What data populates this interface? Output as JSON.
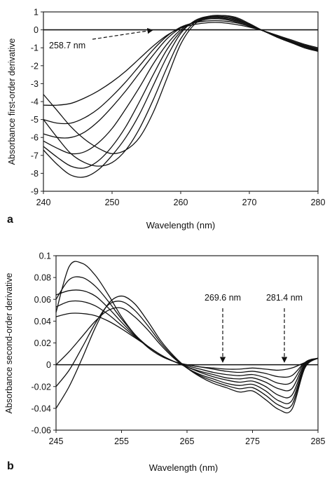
{
  "chart_data": [
    {
      "panel_label": "a",
      "type": "line",
      "xlabel": "Wavelength (nm)",
      "ylabel": "Absorbance first-order derivative",
      "xlim": [
        240,
        280
      ],
      "ylim": [
        -9,
        1
      ],
      "xticks": [
        240,
        250,
        260,
        270,
        280
      ],
      "yticks": [
        1,
        0,
        -1,
        -2,
        -3,
        -4,
        -5,
        -6,
        -7,
        -8,
        -9
      ],
      "x_tick_labels": [
        "240",
        "250",
        "260",
        "270",
        "280"
      ],
      "y_tick_labels": [
        "1",
        "0",
        "-1",
        "-2",
        "-3",
        "-4",
        "-5",
        "-6",
        "-7",
        "-8",
        "-9"
      ],
      "grid": false,
      "annotations": [
        {
          "text": "258.7 nm",
          "x": 258.7,
          "y": 0
        }
      ],
      "series": [
        {
          "x": [
            240,
            242,
            244,
            246,
            248,
            250,
            252,
            254,
            256,
            258,
            260,
            262,
            264,
            266,
            268,
            270,
            272,
            274,
            276,
            278,
            280
          ],
          "values": [
            -4.2,
            -4.2,
            -4.1,
            -3.8,
            -3.4,
            -2.9,
            -2.3,
            -1.6,
            -0.9,
            -0.3,
            0.1,
            0.3,
            0.4,
            0.4,
            0.3,
            0.15,
            -0.05,
            -0.3,
            -0.55,
            -0.8,
            -1.0
          ]
        },
        {
          "x": [
            240,
            242,
            244,
            246,
            248,
            250,
            252,
            254,
            256,
            258,
            260,
            262,
            264,
            266,
            268,
            270,
            272,
            274,
            276,
            278,
            280
          ],
          "values": [
            -5.0,
            -5.2,
            -5.2,
            -4.9,
            -4.4,
            -3.7,
            -2.9,
            -2.0,
            -1.1,
            -0.35,
            0.15,
            0.4,
            0.5,
            0.5,
            0.4,
            0.2,
            -0.05,
            -0.3,
            -0.6,
            -0.85,
            -1.05
          ]
        },
        {
          "x": [
            240,
            242,
            244,
            246,
            248,
            250,
            252,
            254,
            256,
            258,
            260,
            262,
            264,
            266,
            268,
            270,
            272,
            274,
            276,
            278,
            280
          ],
          "values": [
            -5.8,
            -6.0,
            -6.0,
            -5.7,
            -5.1,
            -4.3,
            -3.4,
            -2.4,
            -1.4,
            -0.5,
            0.1,
            0.4,
            0.6,
            0.6,
            0.45,
            0.2,
            -0.05,
            -0.35,
            -0.65,
            -0.9,
            -1.1
          ]
        },
        {
          "x": [
            240,
            242,
            244,
            246,
            248,
            250,
            252,
            254,
            256,
            258,
            260,
            262,
            264,
            266,
            268,
            270,
            272,
            274,
            276,
            278,
            280
          ],
          "values": [
            -6.2,
            -6.6,
            -6.9,
            -6.8,
            -6.3,
            -5.5,
            -4.4,
            -3.2,
            -1.9,
            -0.8,
            0.0,
            0.45,
            0.65,
            0.65,
            0.5,
            0.25,
            -0.05,
            -0.35,
            -0.65,
            -0.9,
            -1.15
          ]
        },
        {
          "x": [
            240,
            242,
            244,
            246,
            248,
            250,
            252,
            254,
            256,
            258,
            260,
            262,
            264,
            266,
            268,
            270,
            272,
            274,
            276,
            278,
            280
          ],
          "values": [
            -6.5,
            -7.1,
            -7.6,
            -7.7,
            -7.3,
            -6.5,
            -5.4,
            -4.0,
            -2.5,
            -1.1,
            -0.1,
            0.45,
            0.7,
            0.7,
            0.55,
            0.25,
            -0.05,
            -0.4,
            -0.7,
            -0.95,
            -1.2
          ]
        },
        {
          "x": [
            240,
            242,
            244,
            246,
            248,
            250,
            252,
            254,
            256,
            258,
            260,
            262,
            264,
            266,
            268,
            270,
            272,
            274,
            276,
            278,
            280
          ],
          "values": [
            -6.7,
            -7.5,
            -8.1,
            -8.2,
            -7.8,
            -7.0,
            -6.0,
            -4.7,
            -3.1,
            -1.5,
            -0.2,
            0.5,
            0.75,
            0.75,
            0.6,
            0.3,
            -0.05,
            -0.4,
            -0.7,
            -1.0,
            -1.2
          ]
        },
        {
          "x": [
            240,
            242,
            244,
            246,
            248,
            250,
            252,
            254,
            256,
            258,
            260,
            262,
            264,
            266,
            268,
            270,
            272,
            274,
            276,
            278,
            280
          ],
          "values": [
            -5.0,
            -6.0,
            -6.9,
            -7.4,
            -7.6,
            -7.4,
            -6.7,
            -5.5,
            -3.9,
            -2.1,
            -0.5,
            0.4,
            0.75,
            0.8,
            0.65,
            0.3,
            -0.05,
            -0.4,
            -0.7,
            -0.95,
            -1.15
          ]
        },
        {
          "x": [
            240,
            242,
            244,
            246,
            248,
            250,
            252,
            254,
            256,
            258,
            260,
            262,
            264,
            266,
            268,
            270,
            272,
            274,
            276,
            278,
            280
          ],
          "values": [
            -3.6,
            -4.5,
            -5.4,
            -6.1,
            -6.6,
            -6.9,
            -6.7,
            -6.0,
            -4.6,
            -2.7,
            -0.8,
            0.3,
            0.7,
            0.8,
            0.7,
            0.35,
            -0.05,
            -0.35,
            -0.65,
            -0.9,
            -1.1
          ]
        }
      ]
    },
    {
      "panel_label": "b",
      "type": "line",
      "xlabel": "Wavelength (nm)",
      "ylabel": "Absorbance second-order derivative",
      "xlim": [
        245,
        285
      ],
      "ylim": [
        -0.06,
        0.1
      ],
      "xticks": [
        245,
        255,
        265,
        275,
        285
      ],
      "yticks": [
        0.1,
        0.08,
        0.06,
        0.04,
        0.02,
        0,
        -0.02,
        -0.04,
        -0.06
      ],
      "x_tick_labels": [
        "245",
        "255",
        "265",
        "275",
        "285"
      ],
      "y_tick_labels": [
        "0.1",
        "0.08",
        "0.06",
        "0.04",
        "0.02",
        "0",
        "-0.02",
        "-0.04",
        "-0.06"
      ],
      "grid": false,
      "annotations": [
        {
          "text": "269.6 nm",
          "x": 269.6,
          "y": 0
        },
        {
          "text": "281.4 nm",
          "x": 281.4,
          "y": 0
        }
      ],
      "series": [
        {
          "x": [
            245,
            247,
            249,
            251,
            253,
            255,
            257,
            259,
            261,
            263,
            265,
            267,
            269,
            271,
            273,
            275,
            277,
            279,
            281,
            283,
            285
          ],
          "values": [
            0.048,
            0.09,
            0.093,
            0.082,
            0.064,
            0.044,
            0.028,
            0.016,
            0.008,
            0.003,
            0.0,
            -0.002,
            -0.003,
            -0.004,
            -0.004,
            -0.003,
            -0.004,
            -0.005,
            -0.003,
            0.002,
            0.006
          ]
        },
        {
          "x": [
            245,
            247,
            249,
            251,
            253,
            255,
            257,
            259,
            261,
            263,
            265,
            267,
            269,
            271,
            273,
            275,
            277,
            279,
            281,
            283,
            285
          ],
          "values": [
            0.06,
            0.078,
            0.08,
            0.072,
            0.058,
            0.042,
            0.028,
            0.017,
            0.009,
            0.003,
            0.0,
            -0.002,
            -0.004,
            -0.006,
            -0.007,
            -0.006,
            -0.008,
            -0.011,
            -0.01,
            0.002,
            0.006
          ]
        },
        {
          "x": [
            245,
            247,
            249,
            251,
            253,
            255,
            257,
            259,
            261,
            263,
            265,
            267,
            269,
            271,
            273,
            275,
            277,
            279,
            281,
            283,
            285
          ],
          "values": [
            0.064,
            0.068,
            0.068,
            0.063,
            0.052,
            0.039,
            0.027,
            0.017,
            0.009,
            0.003,
            -0.001,
            -0.004,
            -0.007,
            -0.009,
            -0.01,
            -0.009,
            -0.012,
            -0.017,
            -0.016,
            0.002,
            0.006
          ]
        },
        {
          "x": [
            245,
            247,
            249,
            251,
            253,
            255,
            257,
            259,
            261,
            263,
            265,
            267,
            269,
            271,
            273,
            275,
            277,
            279,
            281,
            283,
            285
          ],
          "values": [
            0.053,
            0.058,
            0.058,
            0.054,
            0.046,
            0.036,
            0.026,
            0.017,
            0.009,
            0.003,
            -0.002,
            -0.006,
            -0.009,
            -0.012,
            -0.013,
            -0.012,
            -0.016,
            -0.022,
            -0.022,
            0.001,
            0.006
          ]
        },
        {
          "x": [
            245,
            247,
            249,
            251,
            253,
            255,
            257,
            259,
            261,
            263,
            265,
            267,
            269,
            271,
            273,
            275,
            277,
            279,
            281,
            283,
            285
          ],
          "values": [
            0.044,
            0.047,
            0.047,
            0.045,
            0.04,
            0.033,
            0.025,
            0.017,
            0.009,
            0.003,
            -0.002,
            -0.007,
            -0.011,
            -0.014,
            -0.016,
            -0.015,
            -0.02,
            -0.028,
            -0.028,
            0.0,
            0.006
          ]
        },
        {
          "x": [
            245,
            247,
            249,
            251,
            253,
            255,
            257,
            259,
            261,
            263,
            265,
            267,
            269,
            271,
            273,
            275,
            277,
            279,
            281,
            283,
            285
          ],
          "values": [
            0.0,
            0.012,
            0.026,
            0.04,
            0.05,
            0.052,
            0.044,
            0.032,
            0.018,
            0.006,
            -0.003,
            -0.009,
            -0.013,
            -0.017,
            -0.019,
            -0.018,
            -0.024,
            -0.033,
            -0.033,
            -0.001,
            0.006
          ]
        },
        {
          "x": [
            245,
            247,
            249,
            251,
            253,
            255,
            257,
            259,
            261,
            263,
            265,
            267,
            269,
            271,
            273,
            275,
            277,
            279,
            281,
            283,
            285
          ],
          "values": [
            -0.02,
            -0.005,
            0.016,
            0.038,
            0.055,
            0.058,
            0.05,
            0.036,
            0.02,
            0.007,
            -0.003,
            -0.01,
            -0.015,
            -0.019,
            -0.022,
            -0.021,
            -0.028,
            -0.037,
            -0.037,
            -0.002,
            0.006
          ]
        },
        {
          "x": [
            245,
            247,
            249,
            251,
            253,
            255,
            257,
            259,
            261,
            263,
            265,
            267,
            269,
            271,
            273,
            275,
            277,
            279,
            281,
            283,
            285
          ],
          "values": [
            -0.04,
            -0.02,
            0.006,
            0.034,
            0.056,
            0.063,
            0.056,
            0.04,
            0.022,
            0.008,
            -0.003,
            -0.011,
            -0.017,
            -0.021,
            -0.025,
            -0.024,
            -0.032,
            -0.041,
            -0.041,
            -0.003,
            0.006
          ]
        }
      ]
    }
  ]
}
